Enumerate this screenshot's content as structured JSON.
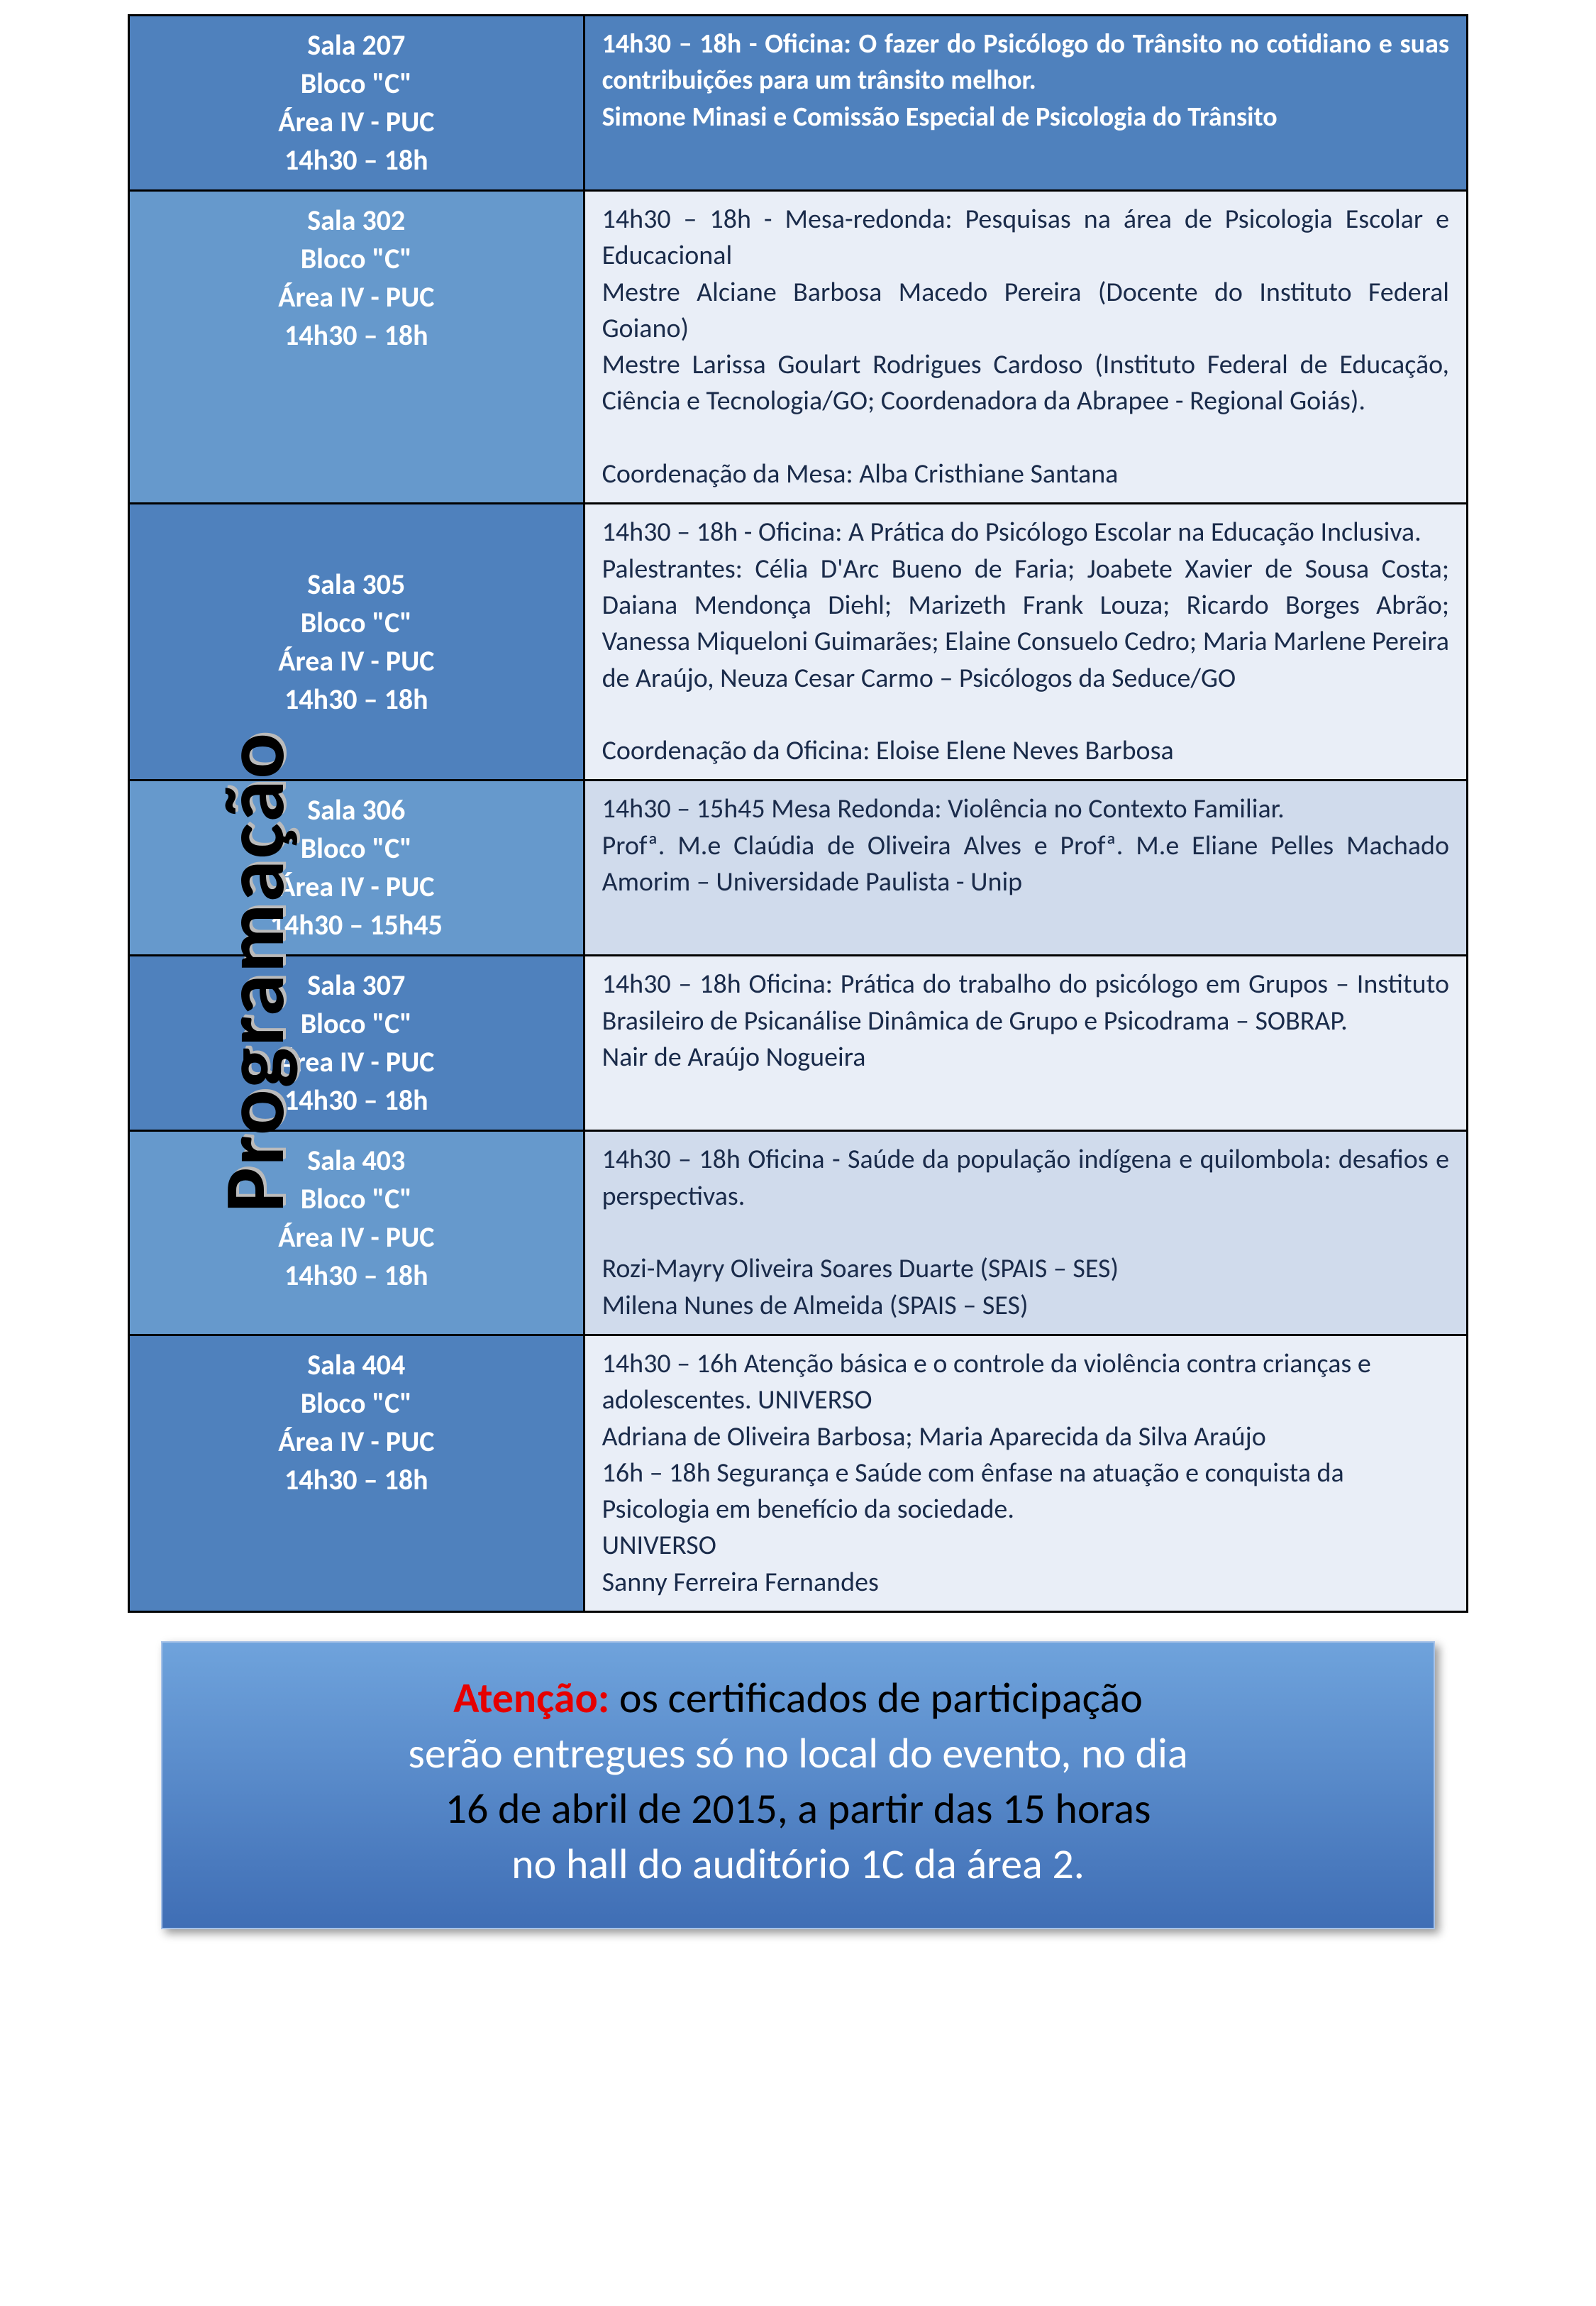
{
  "sidebar_title": "Programação",
  "colors": {
    "header_bg_dark": "#4f81bd",
    "header_bg_light": "#6699cc",
    "desc_bg_light": "#e9eef7",
    "desc_bg_dark": "#d0dbec",
    "border": "#000000",
    "white": "#ffffff",
    "desc_text": "#1a2b4a",
    "footer_text_black": "#000000",
    "footer_text_white": "#ffffff",
    "footer_attn": "#e60000",
    "footer_grad_top": "#6fa3dc",
    "footer_grad_bottom": "#3f6eb5",
    "footer_border": "#a8c3e8"
  },
  "rows": [
    {
      "loc": {
        "l1": "Sala 207",
        "l2": "Bloco \"C\"",
        "l3": "Área IV - PUC",
        "l4": "14h30 – 18h"
      },
      "loc_bg": "#4f81bd",
      "desc_bg": "#4f81bd",
      "desc_color": "#ffffff",
      "desc_weight": "700",
      "desc": "14h30 – 18h - Oficina: O fazer do Psicólogo do Trânsito no cotidiano e suas contribuições para um trânsito melhor.\nSimone Minasi e Comissão Especial de Psicologia do Trânsito"
    },
    {
      "loc": {
        "l1": "Sala 302",
        "l2": "Bloco \"C\"",
        "l3": "Área IV - PUC",
        "l4": "14h30 – 18h"
      },
      "loc_bg": "#6699cc",
      "desc_bg": "#e9eef7",
      "desc_color": "#1a2b4a",
      "desc_weight": "400",
      "desc": "14h30 – 18h - Mesa-redonda: Pesquisas na área de Psicologia Escolar e Educacional\nMestre Alciane Barbosa Macedo Pereira (Docente do Instituto Federal Goiano)\nMestre Larissa Goulart Rodrigues Cardoso (Instituto Federal de Educação, Ciência e Tecnologia/GO; Coordenadora da Abrapee - Regional Goiás).\n\nCoordenação da Mesa: Alba Cristhiane Santana"
    },
    {
      "loc": {
        "l1": "Sala 305",
        "l2": "Bloco \"C\"",
        "l3": "Área IV - PUC",
        "l4": "14h30 – 18h"
      },
      "loc_bg": "#4f81bd",
      "desc_bg": "#e9eef7",
      "desc_color": "#1a2b4a",
      "desc_weight": "400",
      "desc": "14h30 – 18h - Oficina: A Prática do Psicólogo Escolar na Educação Inclusiva.\nPalestrantes: Célia D'Arc Bueno de Faria; Joabete Xavier de Sousa Costa; Daiana Mendonça Diehl; Marizeth Frank Louza; Ricardo Borges Abrão; Vanessa Miqueloni Guimarães; Elaine Consuelo Cedro; Maria Marlene Pereira de Araújo, Neuza Cesar Carmo – Psicólogos da Seduce/GO\n\nCoordenação da Oficina: Eloise Elene Neves Barbosa",
      "loc_valign": "middle"
    },
    {
      "loc": {
        "l1": "Sala 306",
        "l2": "Bloco \"C\"",
        "l3": "Área IV - PUC",
        "l4": "14h30 – 15h45"
      },
      "loc_bg": "#6699cc",
      "desc_bg": "#d0dbec",
      "desc_color": "#1a2b4a",
      "desc_weight": "400",
      "desc": "14h30 – 15h45 Mesa Redonda: Violência no Contexto Familiar.\nProfª. M.e Claúdia de Oliveira Alves e Profª. M.e Eliane Pelles Machado Amorim – Universidade Paulista - Unip"
    },
    {
      "loc": {
        "l1": "Sala 307",
        "l2": "Bloco \"C\"",
        "l3": "Área IV - PUC",
        "l4": "14h30 – 18h"
      },
      "loc_bg": "#4f81bd",
      "desc_bg": "#e9eef7",
      "desc_color": "#1a2b4a",
      "desc_weight": "400",
      "desc": "14h30 – 18h Oficina: Prática do trabalho do psicólogo em Grupos – Instituto Brasileiro de Psicanálise Dinâmica de Grupo e Psicodrama – SOBRAP.\nNair de Araújo Nogueira"
    },
    {
      "loc": {
        "l1": "Sala 403",
        "l2": "Bloco \"C\"",
        "l3": "Área IV - PUC",
        "l4": "14h30 – 18h"
      },
      "loc_bg": "#6699cc",
      "desc_bg": "#d0dbec",
      "desc_color": "#1a2b4a",
      "desc_weight": "400",
      "desc": "14h30 – 18h Oficina - Saúde da população indígena e quilombola: desafios e perspectivas.\n\nRozi-Mayry Oliveira Soares Duarte (SPAIS – SES)\nMilena Nunes de Almeida (SPAIS – SES)"
    },
    {
      "loc": {
        "l1": "Sala 404",
        "l2": "Bloco \"C\"",
        "l3": "Área IV - PUC",
        "l4": "14h30 – 18h"
      },
      "loc_bg": "#4f81bd",
      "desc_bg": "#e9eef7",
      "desc_color": "#1a2b4a",
      "desc_weight": "400",
      "desc": "14h30 – 16h  Atenção básica e o controle da violência contra crianças e adolescentes. UNIVERSO\nAdriana de Oliveira Barbosa; Maria Aparecida da Silva Araújo\n16h – 18h Segurança e Saúde com ênfase na atuação e conquista da Psicologia em benefício da sociedade.\nUNIVERSO\nSanny Ferreira Fernandes",
      "desc_align": "left"
    }
  ],
  "footer": {
    "attn": "Atenção:",
    "line1": " os certificados de participação",
    "line2": "serão entregues só no local do evento, no dia",
    "line3": "16 de abril de 2015, a partir das 15 horas",
    "line4": "no hall do auditório  1C da área 2."
  }
}
